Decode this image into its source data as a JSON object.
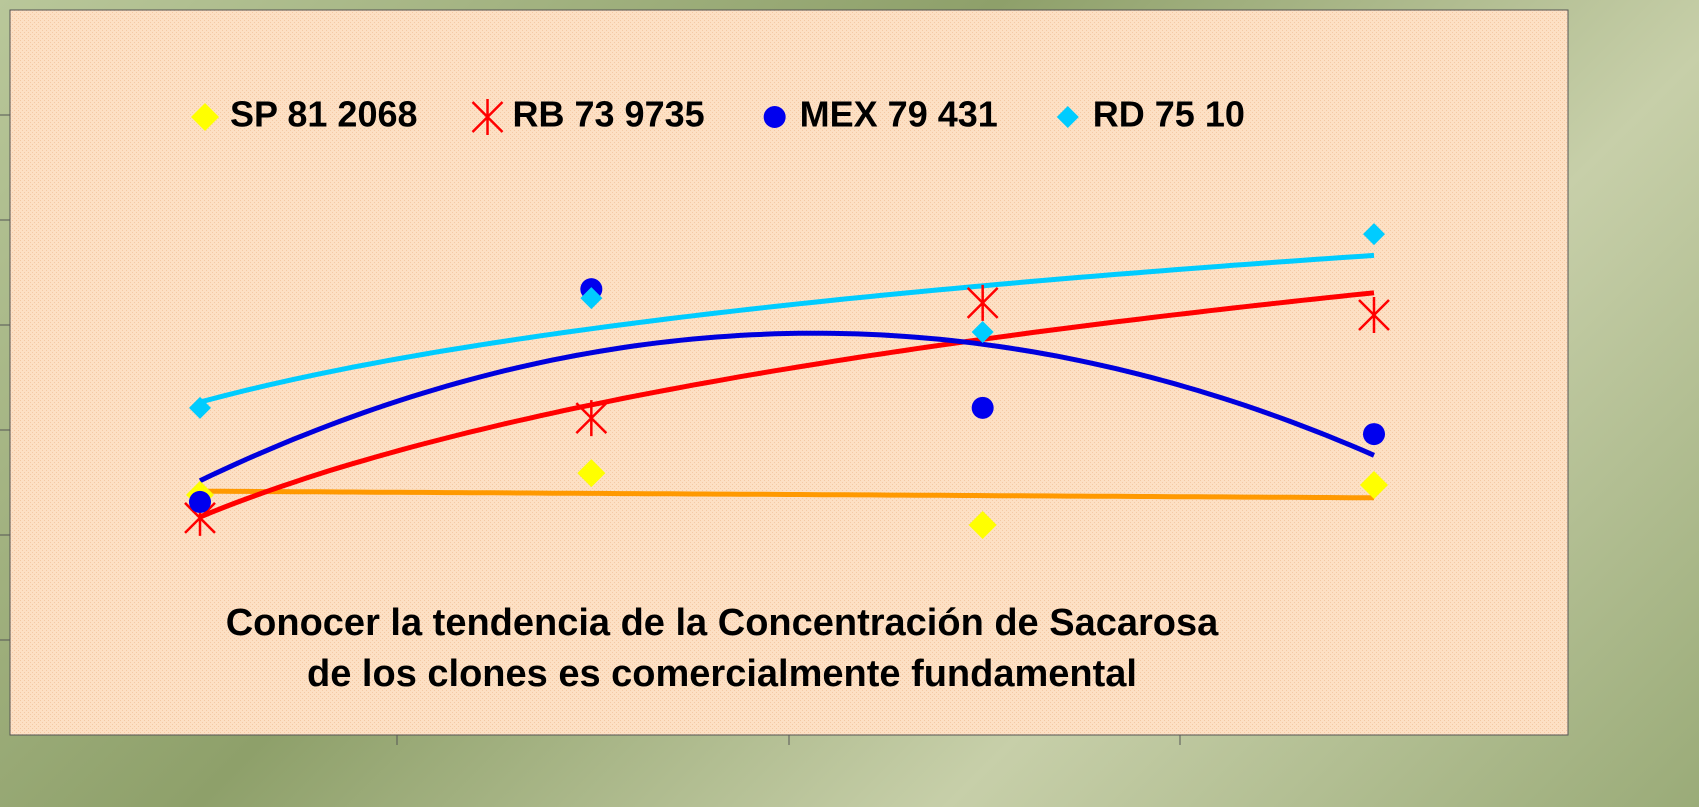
{
  "chart_data": {
    "type": "scatter",
    "title": "Conocer la tendencia de la Concentración de Sacarosa de los clones es comercialmente fundamental",
    "categories": [
      null,
      null,
      null,
      null
    ],
    "ylim": [
      0,
      100
    ],
    "series": [
      {
        "name": "SP 81 2068",
        "color": "#ffff00",
        "marker": "diamond",
        "values": [
          14.1,
          20.9,
          4.7,
          17.2
        ],
        "trendline": {
          "type": "linear",
          "color": "#ff9900"
        }
      },
      {
        "name": "RB 73 9735",
        "color": "#ff0000",
        "marker": "star",
        "values": [
          6.9,
          38.1,
          74.1,
          70.3
        ],
        "trendline": {
          "type": "log",
          "color": "#ff0000"
        }
      },
      {
        "name": "MEX 79 431",
        "color": "#0000ee",
        "marker": "circle",
        "values": [
          11.9,
          78.4,
          41.3,
          33.1
        ],
        "trendline": {
          "type": "poly2",
          "color": "#0000dd"
        }
      },
      {
        "name": "RD 75 10",
        "color": "#00ccff",
        "marker": "diamond-small",
        "values": [
          41.3,
          75.6,
          65.0,
          95.6
        ],
        "trendline": {
          "type": "log",
          "color": "#00ccff"
        }
      }
    ],
    "legend": "top"
  }
}
